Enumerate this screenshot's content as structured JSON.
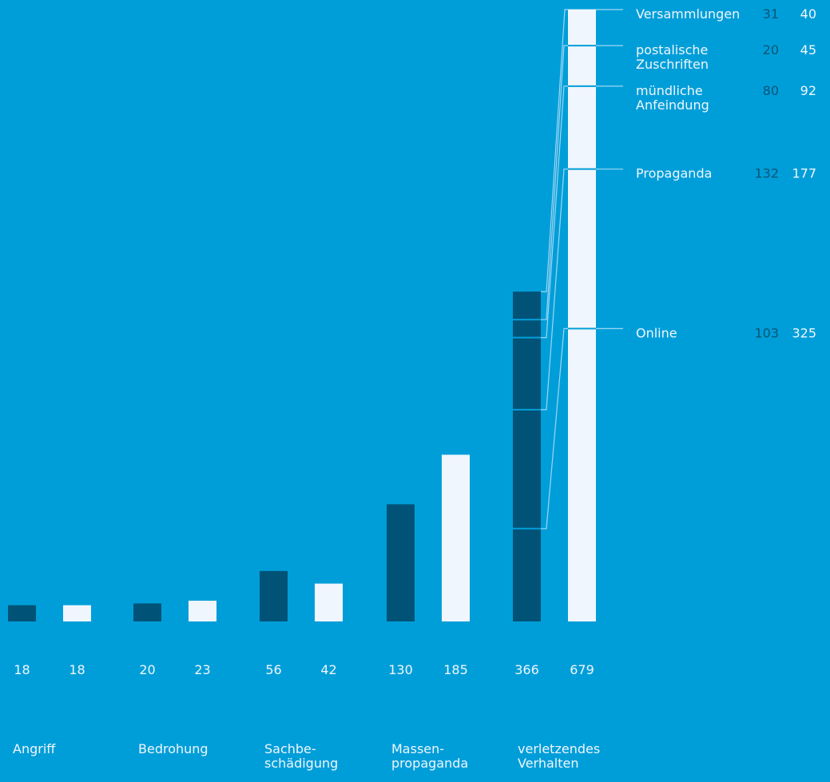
{
  "chart_data": {
    "type": "bar",
    "categories": [
      "Angriff",
      "Bedrohung",
      "Sachbe-\nschädigung",
      "Massen-\npropaganda",
      "verletzendes\nVerhalten"
    ],
    "series": [
      {
        "values": [
          18,
          20,
          56,
          130,
          366
        ]
      },
      {
        "values": [
          18,
          23,
          42,
          185,
          679
        ]
      }
    ],
    "breakdown": {
      "category": "verletzendes\nVerhalten",
      "segments": [
        {
          "label": "Online",
          "values": [
            103,
            325
          ]
        },
        {
          "label": "Propaganda",
          "values": [
            132,
            177
          ]
        },
        {
          "label": "mündliche\nAnfeindung",
          "values": [
            80,
            92
          ]
        },
        {
          "label": "postalische\nZuschriften",
          "values": [
            20,
            45
          ]
        },
        {
          "label": "Versammlungen",
          "values": [
            31,
            40
          ]
        }
      ]
    },
    "title": "",
    "xlabel": "",
    "ylabel": "",
    "ylim": [
      0,
      679
    ],
    "grid": false,
    "legend": "none"
  },
  "colors": {
    "background": "#009ed9",
    "series_a": "#005377",
    "series_b": "#f0f6fd",
    "text": "#f0f6fd",
    "text_muted": "#0b5575",
    "connector": "#9fd6f2",
    "divider": "#009ed9"
  }
}
